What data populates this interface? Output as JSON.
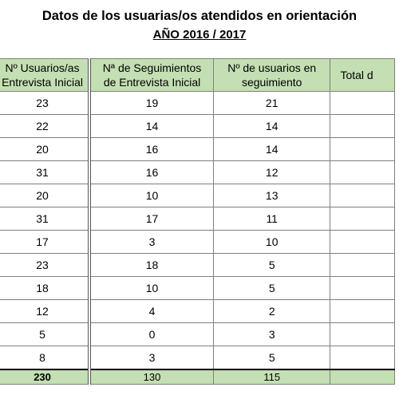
{
  "title": "Datos de los usuarias/os atendidos en orientación",
  "subtitle": "AÑO 2016 / 2017",
  "table": {
    "headers": [
      [
        "Nº Usuarios/as",
        "Entrevista Inicial"
      ],
      [
        "Nª de Seguimientos",
        "de Entrevista Inicial"
      ],
      [
        "Nº de usuarios en",
        "seguimiento"
      ],
      [
        "Total d",
        ""
      ]
    ],
    "rows": [
      [
        "23",
        "19",
        "21",
        ""
      ],
      [
        "22",
        "14",
        "14",
        ""
      ],
      [
        "20",
        "16",
        "14",
        ""
      ],
      [
        "31",
        "16",
        "12",
        ""
      ],
      [
        "20",
        "10",
        "13",
        ""
      ],
      [
        "31",
        "17",
        "11",
        ""
      ],
      [
        "17",
        "3",
        "10",
        ""
      ],
      [
        "23",
        "18",
        "5",
        ""
      ],
      [
        "18",
        "10",
        "5",
        ""
      ],
      [
        "12",
        "4",
        "2",
        ""
      ],
      [
        "5",
        "0",
        "3",
        ""
      ],
      [
        "8",
        "3",
        "5",
        ""
      ]
    ],
    "totals": [
      "230",
      "130",
      "115",
      ""
    ]
  }
}
